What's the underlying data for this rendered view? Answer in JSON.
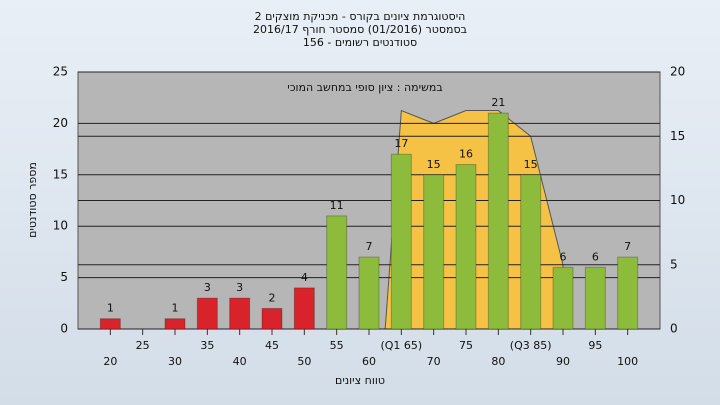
{
  "chart_data": {
    "type": "bar",
    "title": [
      "היסטוגרמת ציונים בקורס - מכניקת מוצקים 2",
      "בסמסטר (01/2016) סמסטר חורף 2016/17",
      "סטודנטים רשומים - 156"
    ],
    "annotation": "במשימה : ציון סופי במחשב המוכי",
    "x_label": "טווח ציונים",
    "y_label": "מספר סטודנטים",
    "categories": [
      "20",
      "25",
      "30",
      "35",
      "40",
      "45",
      "50",
      "55",
      "60",
      "(Q1 65)",
      "70",
      "75",
      "80",
      "(Q3 85)",
      "90",
      "95",
      "100"
    ],
    "values": [
      1,
      null,
      1,
      3,
      3,
      2,
      4,
      11,
      7,
      17,
      15,
      16,
      21,
      15,
      6,
      6,
      7
    ],
    "colors": [
      "#d9232b",
      "#d9232b",
      "#d9232b",
      "#d9232b",
      "#d9232b",
      "#d9232b",
      "#d9232b",
      "#8dbb3c",
      "#8dbb3c",
      "#8dbb3c",
      "#8dbb3c",
      "#8dbb3c",
      "#8dbb3c",
      "#8dbb3c",
      "#8dbb3c",
      "#8dbb3c",
      "#8dbb3c"
    ],
    "area": {
      "axis": "y2",
      "color": "#f5c245",
      "values": [
        null,
        null,
        null,
        null,
        null,
        null,
        null,
        null,
        null,
        17,
        16,
        17,
        17,
        15,
        5,
        null,
        null
      ]
    },
    "ylim": [
      0,
      25
    ],
    "yticks": [
      0,
      5,
      10,
      15,
      20,
      25
    ],
    "y2lim": [
      0,
      20
    ],
    "y2ticks": [
      0,
      5,
      10,
      15,
      20
    ],
    "grid": true
  }
}
